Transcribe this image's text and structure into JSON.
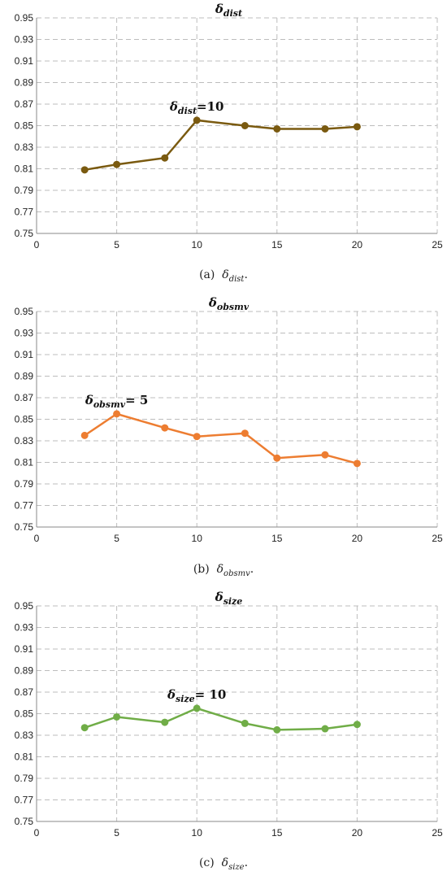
{
  "chart_data": [
    {
      "type": "line",
      "title_sym": "δ",
      "title_sub": "dist",
      "x": [
        3,
        5,
        8,
        10,
        13,
        15,
        18,
        20
      ],
      "series": [
        {
          "values": [
            0.809,
            0.814,
            0.82,
            0.855,
            0.85,
            0.847,
            0.847,
            0.849
          ]
        }
      ],
      "xlim": [
        0,
        25
      ],
      "ylim": [
        0.75,
        0.95
      ],
      "xticks": [
        "0",
        "5",
        "10",
        "15",
        "20",
        "25"
      ],
      "yticks": [
        "0.75",
        "0.77",
        "0.79",
        "0.81",
        "0.83",
        "0.85",
        "0.87",
        "0.89",
        "0.91",
        "0.93",
        "0.95"
      ],
      "grid": true,
      "color": "#7a5a10",
      "annotation": {
        "sym": "δ",
        "sub": "dist",
        "text": "=10",
        "at_x": 10
      },
      "caption": {
        "label": "(a)",
        "sym": "δ",
        "sub": "dist",
        "end": "."
      }
    },
    {
      "type": "line",
      "title_sym": "δ",
      "title_sub": "obsmv",
      "x": [
        3,
        5,
        8,
        10,
        13,
        15,
        18,
        20
      ],
      "series": [
        {
          "values": [
            0.835,
            0.855,
            0.842,
            0.834,
            0.837,
            0.814,
            0.817,
            0.809
          ]
        }
      ],
      "xlim": [
        0,
        25
      ],
      "ylim": [
        0.75,
        0.95
      ],
      "xticks": [
        "0",
        "5",
        "10",
        "15",
        "20",
        "25"
      ],
      "yticks": [
        "0.75",
        "0.77",
        "0.79",
        "0.81",
        "0.83",
        "0.85",
        "0.87",
        "0.89",
        "0.91",
        "0.93",
        "0.95"
      ],
      "grid": true,
      "color": "#ed7d31",
      "annotation": {
        "sym": "δ",
        "sub": "obsmv",
        "text": "= 5",
        "at_x": 5
      },
      "caption": {
        "label": "(b)",
        "sym": "δ",
        "sub": "obsmv",
        "end": "."
      }
    },
    {
      "type": "line",
      "title_sym": "δ",
      "title_sub": "size",
      "x": [
        3,
        5,
        8,
        10,
        13,
        15,
        18,
        20
      ],
      "series": [
        {
          "values": [
            0.837,
            0.847,
            0.842,
            0.855,
            0.841,
            0.835,
            0.836,
            0.84
          ]
        }
      ],
      "xlim": [
        0,
        25
      ],
      "ylim": [
        0.75,
        0.95
      ],
      "xticks": [
        "0",
        "5",
        "10",
        "15",
        "20",
        "25"
      ],
      "yticks": [
        "0.75",
        "0.77",
        "0.79",
        "0.81",
        "0.83",
        "0.85",
        "0.87",
        "0.89",
        "0.91",
        "0.93",
        "0.95"
      ],
      "grid": true,
      "color": "#70ad47",
      "annotation": {
        "sym": "δ",
        "sub": "size",
        "text": "= 10",
        "at_x": 10
      },
      "caption": {
        "label": "(c)",
        "sym": "δ",
        "sub": "size",
        "end": "."
      }
    }
  ]
}
